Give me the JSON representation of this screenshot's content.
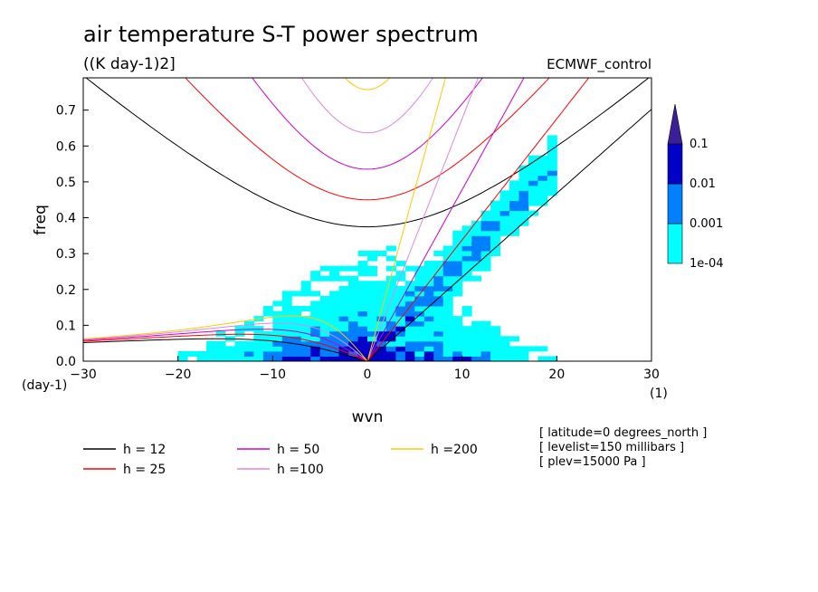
{
  "chart_data": {
    "type": "heatmap",
    "title": "air temperature S-T power spectrum",
    "subtitle": "((K day-1)2]",
    "source_label": "ECMWF_control",
    "xlabel": "wvn",
    "ylabel": "freq",
    "xunit": "(1)",
    "yunit": "(day-1)",
    "xlim": [
      -30,
      30
    ],
    "ylim": [
      0,
      0.79
    ],
    "xticks": [
      -30,
      -20,
      -10,
      0,
      10,
      20,
      30
    ],
    "yticks": [
      0.0,
      0.1,
      0.2,
      0.3,
      0.4,
      0.5,
      0.6,
      0.7
    ],
    "color_levels": [
      {
        "label": "1e-04",
        "color": "#00ffff"
      },
      {
        "label": "0.001",
        "color": "#0080ff"
      },
      {
        "label": "0.01",
        "color": "#0000c8"
      },
      {
        "label": "0.1",
        "color": "#3c1e96"
      }
    ],
    "legend": [
      {
        "label": "h = 12",
        "color": "#000000",
        "h": 12
      },
      {
        "label": "h = 25",
        "color": "#ff0000",
        "h": 25
      },
      {
        "label": "h = 50",
        "color": "#cc00cc",
        "h": 50
      },
      {
        "label": "h =100",
        "color": "#dd88dd",
        "h": 100
      },
      {
        "label": "h =200",
        "color": "#ffc800",
        "h": 200
      }
    ],
    "info": [
      "[ latitude=0 degrees_north ]",
      "[ levelist=150 millibars ]",
      "[ plev=15000 Pa ]"
    ]
  }
}
